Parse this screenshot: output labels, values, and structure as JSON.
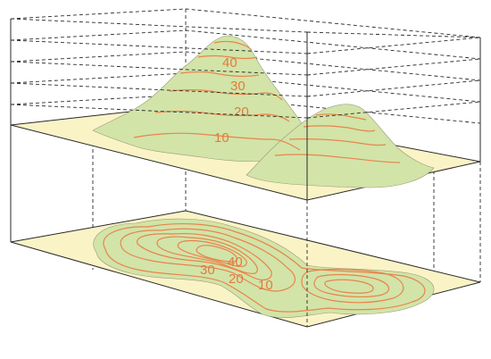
{
  "colors": {
    "plane": "#faf3c6",
    "land": "#d2e4a8",
    "contour": "#e8844c",
    "label": "#e27a3e",
    "frame": "#2a2a2a"
  },
  "contour_labels": {
    "terrain": [
      "40",
      "30",
      "20",
      "10"
    ],
    "map": [
      "40",
      "30",
      "20",
      "10"
    ]
  }
}
